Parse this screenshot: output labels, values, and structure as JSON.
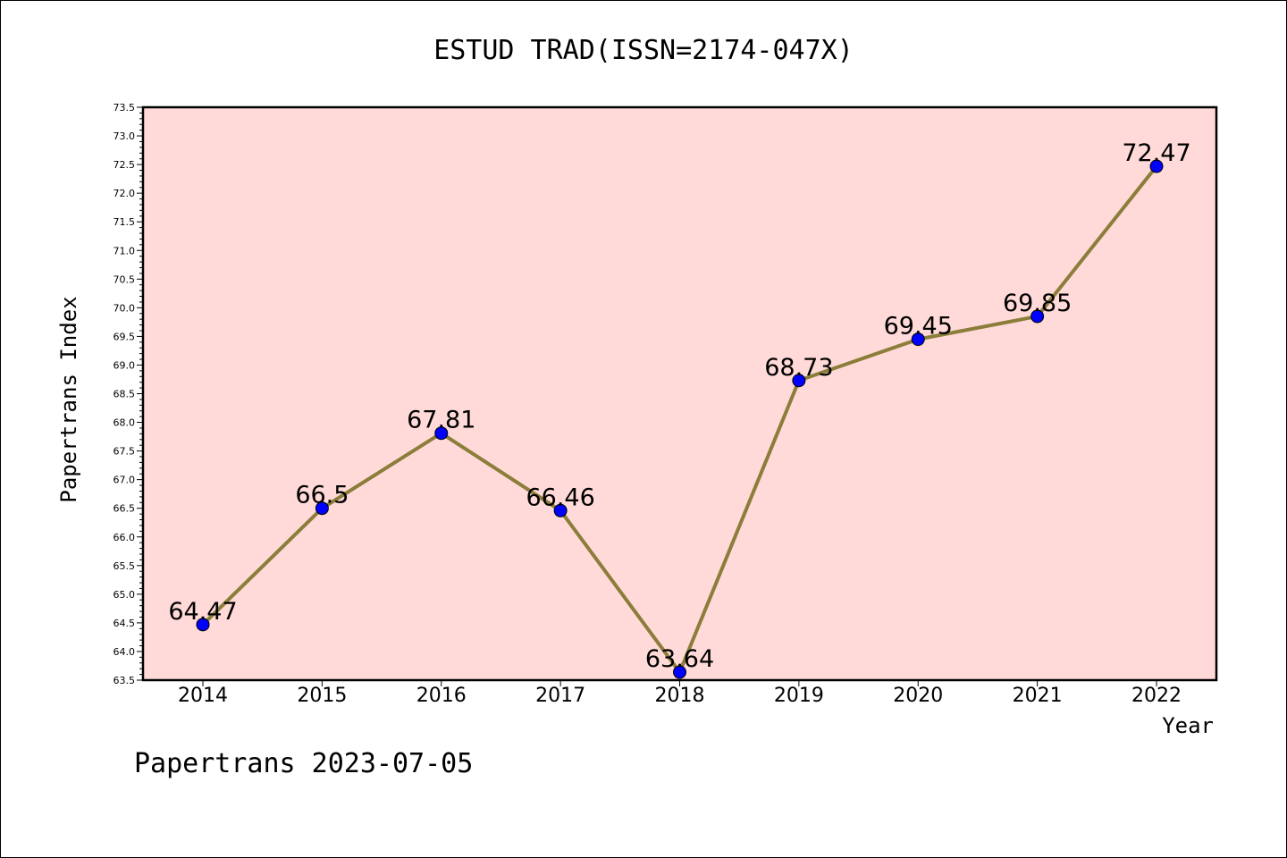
{
  "chart_data": {
    "type": "line",
    "title": "ESTUD TRAD(ISSN=2174-047X)",
    "xlabel": "Year",
    "ylabel": "Papertrans Index",
    "footer": "Papertrans 2023-07-05",
    "categories": [
      "2014",
      "2015",
      "2016",
      "2017",
      "2018",
      "2019",
      "2020",
      "2021",
      "2022"
    ],
    "values": [
      64.47,
      66.5,
      67.81,
      66.46,
      63.64,
      68.73,
      69.45,
      69.85,
      72.47
    ],
    "value_labels": [
      "64.47",
      "66.5",
      "67.81",
      "66.46",
      "63.64",
      "68.73",
      "69.45",
      "69.85",
      "72.47"
    ],
    "ylim": [
      63.5,
      73.5
    ],
    "yticks": [
      "63.5",
      "64.0",
      "64.5",
      "65.0",
      "65.5",
      "66.0",
      "66.5",
      "67.0",
      "67.5",
      "68.0",
      "68.5",
      "69.0",
      "69.5",
      "70.0",
      "70.5",
      "71.0",
      "71.5",
      "72.0",
      "72.5",
      "73.0",
      "73.5"
    ],
    "grid": false,
    "colors": {
      "plot_background": "#FFDAD8",
      "line": "#8B7D3A",
      "marker": "#0000FF"
    }
  }
}
